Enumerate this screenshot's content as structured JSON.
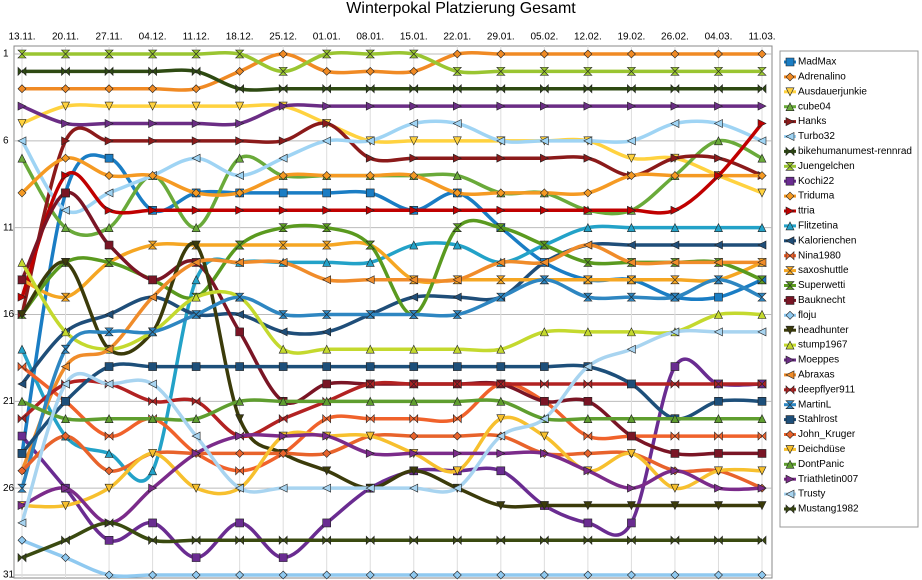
{
  "chart_data": {
    "type": "line",
    "title": "Winterpokal Platzierung Gesamt",
    "categories": [
      "13.11.",
      "20.11.",
      "27.11.",
      "04.12.",
      "11.12.",
      "18.12.",
      "25.12.",
      "01.01.",
      "08.01.",
      "15.01.",
      "22.01.",
      "29.01.",
      "05.02.",
      "12.02.",
      "19.02.",
      "26.02.",
      "04.03.",
      "11.03."
    ],
    "ylim": [
      1,
      31
    ],
    "y_inverted": true,
    "yticks": [
      1,
      6,
      11,
      16,
      21,
      26,
      31
    ],
    "grid": true,
    "legend": "right",
    "smooth": true,
    "series": [
      {
        "name": "MadMax",
        "color": "#1a7dc4",
        "marker": "square",
        "values": [
          24,
          9,
          7,
          10,
          9,
          9,
          9,
          9,
          9,
          10,
          9,
          11,
          13,
          14,
          14,
          15,
          15,
          14
        ]
      },
      {
        "name": "Adrenalino",
        "color": "#f08a24",
        "marker": "diamond",
        "values": [
          3,
          3,
          3,
          3,
          3,
          2,
          1,
          2,
          2,
          2,
          1,
          1,
          1,
          1,
          1,
          1,
          1,
          1
        ]
      },
      {
        "name": "Ausdauerjunkie",
        "color": "#ffd23f",
        "marker": "tridown",
        "values": [
          5,
          4,
          4,
          4,
          4,
          4,
          4,
          5,
          6,
          6,
          6,
          6,
          6,
          6,
          7,
          7,
          8,
          9
        ]
      },
      {
        "name": "cube04",
        "color": "#6aaa3a",
        "marker": "triup",
        "values": [
          7,
          11,
          11,
          8,
          11,
          7,
          8,
          8,
          8,
          8,
          8,
          9,
          9,
          10,
          10,
          8,
          6,
          7
        ]
      },
      {
        "name": "Hanks",
        "color": "#8b1a1a",
        "marker": "triright",
        "values": [
          16,
          6,
          6,
          6,
          6,
          6,
          6,
          5,
          7,
          7,
          7,
          7,
          7,
          7,
          8,
          7,
          7,
          8
        ]
      },
      {
        "name": "Turbo32",
        "color": "#9fd4f4",
        "marker": "trileft",
        "values": [
          6,
          10,
          9,
          8,
          7,
          8,
          7,
          6,
          6,
          5,
          5,
          6,
          6,
          6,
          6,
          5,
          5,
          6
        ]
      },
      {
        "name": "bikehumanumest-rennrad",
        "color": "#2e4a12",
        "marker": "bowtie",
        "values": [
          2,
          2,
          2,
          2,
          2,
          3,
          3,
          3,
          3,
          3,
          3,
          3,
          3,
          3,
          3,
          3,
          3,
          3
        ]
      },
      {
        "name": "Juengelchen",
        "color": "#9ac531",
        "marker": "hourglass",
        "values": [
          1,
          1,
          1,
          1,
          1,
          1,
          2,
          1,
          1,
          1,
          2,
          2,
          2,
          2,
          2,
          2,
          2,
          2
        ]
      },
      {
        "name": "Kochi22",
        "color": "#6a2c91",
        "marker": "square",
        "values": [
          23,
          26,
          29,
          28,
          30,
          28,
          30,
          28,
          26,
          25,
          25,
          25,
          27,
          28,
          28,
          19,
          20,
          20
        ]
      },
      {
        "name": "Triduma",
        "color": "#f59a23",
        "marker": "diamond",
        "values": [
          9,
          7,
          8,
          8,
          9,
          9,
          8,
          8,
          8,
          8,
          9,
          9,
          9,
          9,
          8,
          8,
          8,
          8
        ]
      },
      {
        "name": "ttria",
        "color": "#c00000",
        "marker": "triright",
        "values": [
          15,
          8,
          10,
          10,
          10,
          10,
          10,
          10,
          10,
          10,
          10,
          10,
          10,
          10,
          10,
          10,
          8,
          5
        ]
      },
      {
        "name": "Flitzetina",
        "color": "#23a2c8",
        "marker": "triup",
        "values": [
          18,
          23,
          24,
          25,
          14,
          13,
          13,
          13,
          13,
          12,
          12,
          13,
          12,
          11,
          11,
          11,
          11,
          11
        ]
      },
      {
        "name": "Kalorienchen",
        "color": "#1f4e79",
        "marker": "trileft",
        "values": [
          20,
          17,
          16,
          15,
          16,
          16,
          17,
          17,
          16,
          15,
          15,
          15,
          13,
          12,
          12,
          12,
          12,
          12
        ]
      },
      {
        "name": "Nina1980",
        "color": "#f0622b",
        "marker": "bowtie",
        "values": [
          19,
          21,
          23,
          22,
          24,
          25,
          24,
          22,
          22,
          22,
          22,
          20,
          21,
          23,
          23,
          23,
          23,
          23
        ]
      },
      {
        "name": "saxoshuttle",
        "color": "#f5a623",
        "marker": "hourglass",
        "values": [
          14,
          15,
          13,
          12,
          12,
          12,
          12,
          12,
          12,
          14,
          14,
          14,
          14,
          14,
          14,
          14,
          14,
          13
        ]
      },
      {
        "name": "Superwetti",
        "color": "#5a9a1f",
        "marker": "hourglass",
        "values": [
          16,
          13,
          13,
          14,
          15,
          12,
          11,
          11,
          12,
          16,
          11,
          11,
          12,
          13,
          13,
          13,
          13,
          14
        ]
      },
      {
        "name": "Bauknecht",
        "color": "#7a1525",
        "marker": "square",
        "values": [
          14,
          9,
          12,
          14,
          13,
          17,
          21,
          20,
          20,
          20,
          20,
          20,
          21,
          21,
          23,
          24,
          24,
          24
        ]
      },
      {
        "name": "floju",
        "color": "#8fc9f0",
        "marker": "diamond",
        "values": [
          29,
          30,
          31,
          31,
          31,
          31,
          31,
          31,
          31,
          31,
          31,
          31,
          31,
          31,
          31,
          31,
          31,
          31
        ]
      },
      {
        "name": "headhunter",
        "color": "#3b3b0a",
        "marker": "tridown",
        "values": [
          16,
          13,
          18,
          17,
          12,
          22,
          24,
          25,
          26,
          25,
          26,
          27,
          27,
          27,
          27,
          27,
          27,
          27
        ]
      },
      {
        "name": "stump1967",
        "color": "#c4d92e",
        "marker": "triup",
        "values": [
          13,
          17,
          18,
          17,
          15,
          15,
          18,
          18,
          18,
          18,
          18,
          18,
          17,
          17,
          17,
          17,
          16,
          16
        ]
      },
      {
        "name": "Moeppes",
        "color": "#6b2d85",
        "marker": "triright",
        "values": [
          4,
          5,
          5,
          5,
          5,
          5,
          4,
          4,
          4,
          4,
          4,
          4,
          4,
          4,
          4,
          4,
          4,
          4
        ]
      },
      {
        "name": "Abraxas",
        "color": "#f08c2a",
        "marker": "trileft",
        "values": [
          25,
          19,
          18,
          15,
          13,
          13,
          13,
          14,
          14,
          14,
          14,
          13,
          13,
          12,
          13,
          13,
          13,
          13
        ]
      },
      {
        "name": "deepflyer911",
        "color": "#b22222",
        "marker": "bowtie",
        "values": [
          22,
          20,
          20,
          21,
          21,
          23,
          22,
          21,
          20,
          20,
          20,
          20,
          20,
          20,
          20,
          20,
          20,
          20
        ]
      },
      {
        "name": "MartinL",
        "color": "#2e86c1",
        "marker": "hourglass",
        "values": [
          26,
          18,
          17,
          17,
          16,
          15,
          16,
          16,
          16,
          16,
          16,
          15,
          14,
          15,
          15,
          15,
          14,
          15
        ]
      },
      {
        "name": "Stahlrost",
        "color": "#1d4f7a",
        "marker": "square",
        "values": [
          24,
          21,
          19,
          19,
          19,
          19,
          19,
          19,
          19,
          19,
          19,
          19,
          19,
          19,
          20,
          22,
          21,
          21
        ]
      },
      {
        "name": "John_Kruger",
        "color": "#e8632b",
        "marker": "diamond",
        "values": [
          25,
          23,
          25,
          24,
          24,
          24,
          24,
          24,
          23,
          23,
          23,
          23,
          24,
          24,
          24,
          25,
          25,
          26
        ]
      },
      {
        "name": "Deichdüse",
        "color": "#f7c02e",
        "marker": "tridown",
        "values": [
          27,
          27,
          26,
          24,
          26,
          26,
          23,
          23,
          23,
          24,
          25,
          22,
          23,
          25,
          24,
          26,
          25,
          25
        ]
      },
      {
        "name": "DontPanic",
        "color": "#5f9e2f",
        "marker": "triup",
        "values": [
          21,
          22,
          22,
          22,
          22,
          21,
          21,
          21,
          21,
          21,
          21,
          21,
          22,
          22,
          22,
          22,
          22,
          22
        ]
      },
      {
        "name": "Triathletin007",
        "color": "#7b2b8a",
        "marker": "triright",
        "values": [
          27,
          26,
          28,
          26,
          24,
          23,
          23,
          23,
          24,
          24,
          24,
          24,
          24,
          25,
          26,
          25,
          26,
          26
        ]
      },
      {
        "name": "Trusty",
        "color": "#a8d4f0",
        "marker": "trileft",
        "values": [
          28,
          20,
          20,
          20,
          23,
          26,
          26,
          26,
          26,
          26,
          26,
          23,
          22,
          19,
          18,
          17,
          17,
          17
        ]
      },
      {
        "name": "Mustang1982",
        "color": "#3a4a10",
        "marker": "bowtie",
        "values": [
          30,
          29,
          28,
          29,
          29,
          29,
          29,
          29,
          29,
          29,
          29,
          29,
          29,
          29,
          29,
          29,
          29,
          29
        ]
      }
    ]
  }
}
